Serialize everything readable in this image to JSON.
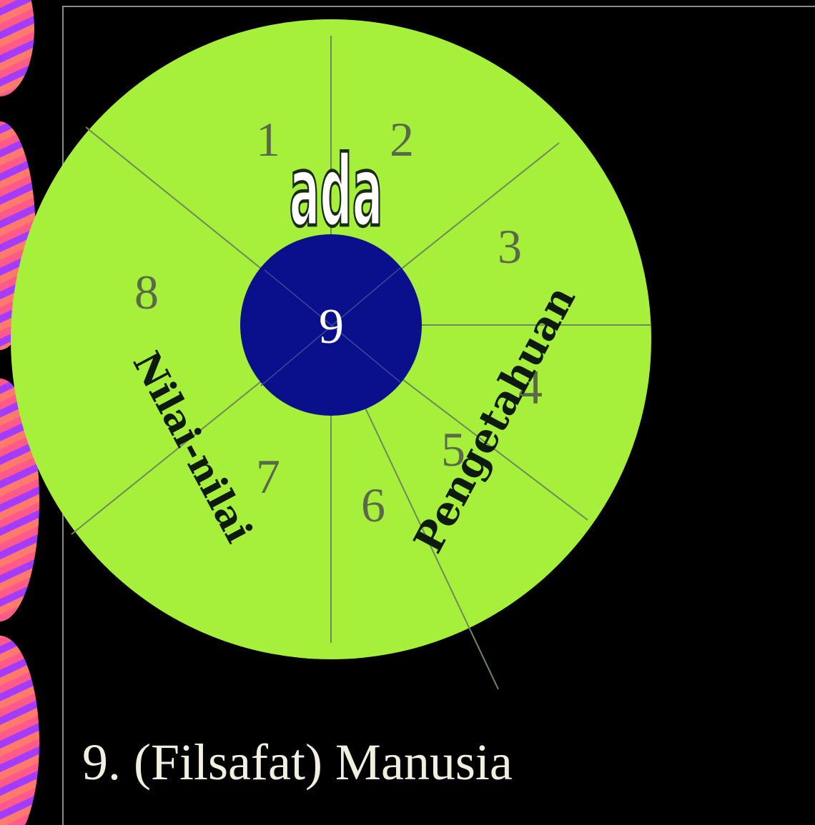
{
  "diagram": {
    "segment_numbers": [
      "1",
      "2",
      "3",
      "4",
      "5",
      "6",
      "7",
      "8"
    ],
    "center_number": "9",
    "words": {
      "top": "ada",
      "right": "Pengetahuan",
      "left": "Nilai-nilai"
    },
    "colors": {
      "background": "#000000",
      "outer_ring": "#a6f03c",
      "center_disc": "#0a0f8c",
      "divider_lines": "#6e8a5a",
      "segment_numbers": "#5a6a48",
      "center_number": "#ffffff",
      "word_dark": "#0d1a0d"
    }
  },
  "caption": {
    "text": "9. (Filsafat) Manusia"
  }
}
